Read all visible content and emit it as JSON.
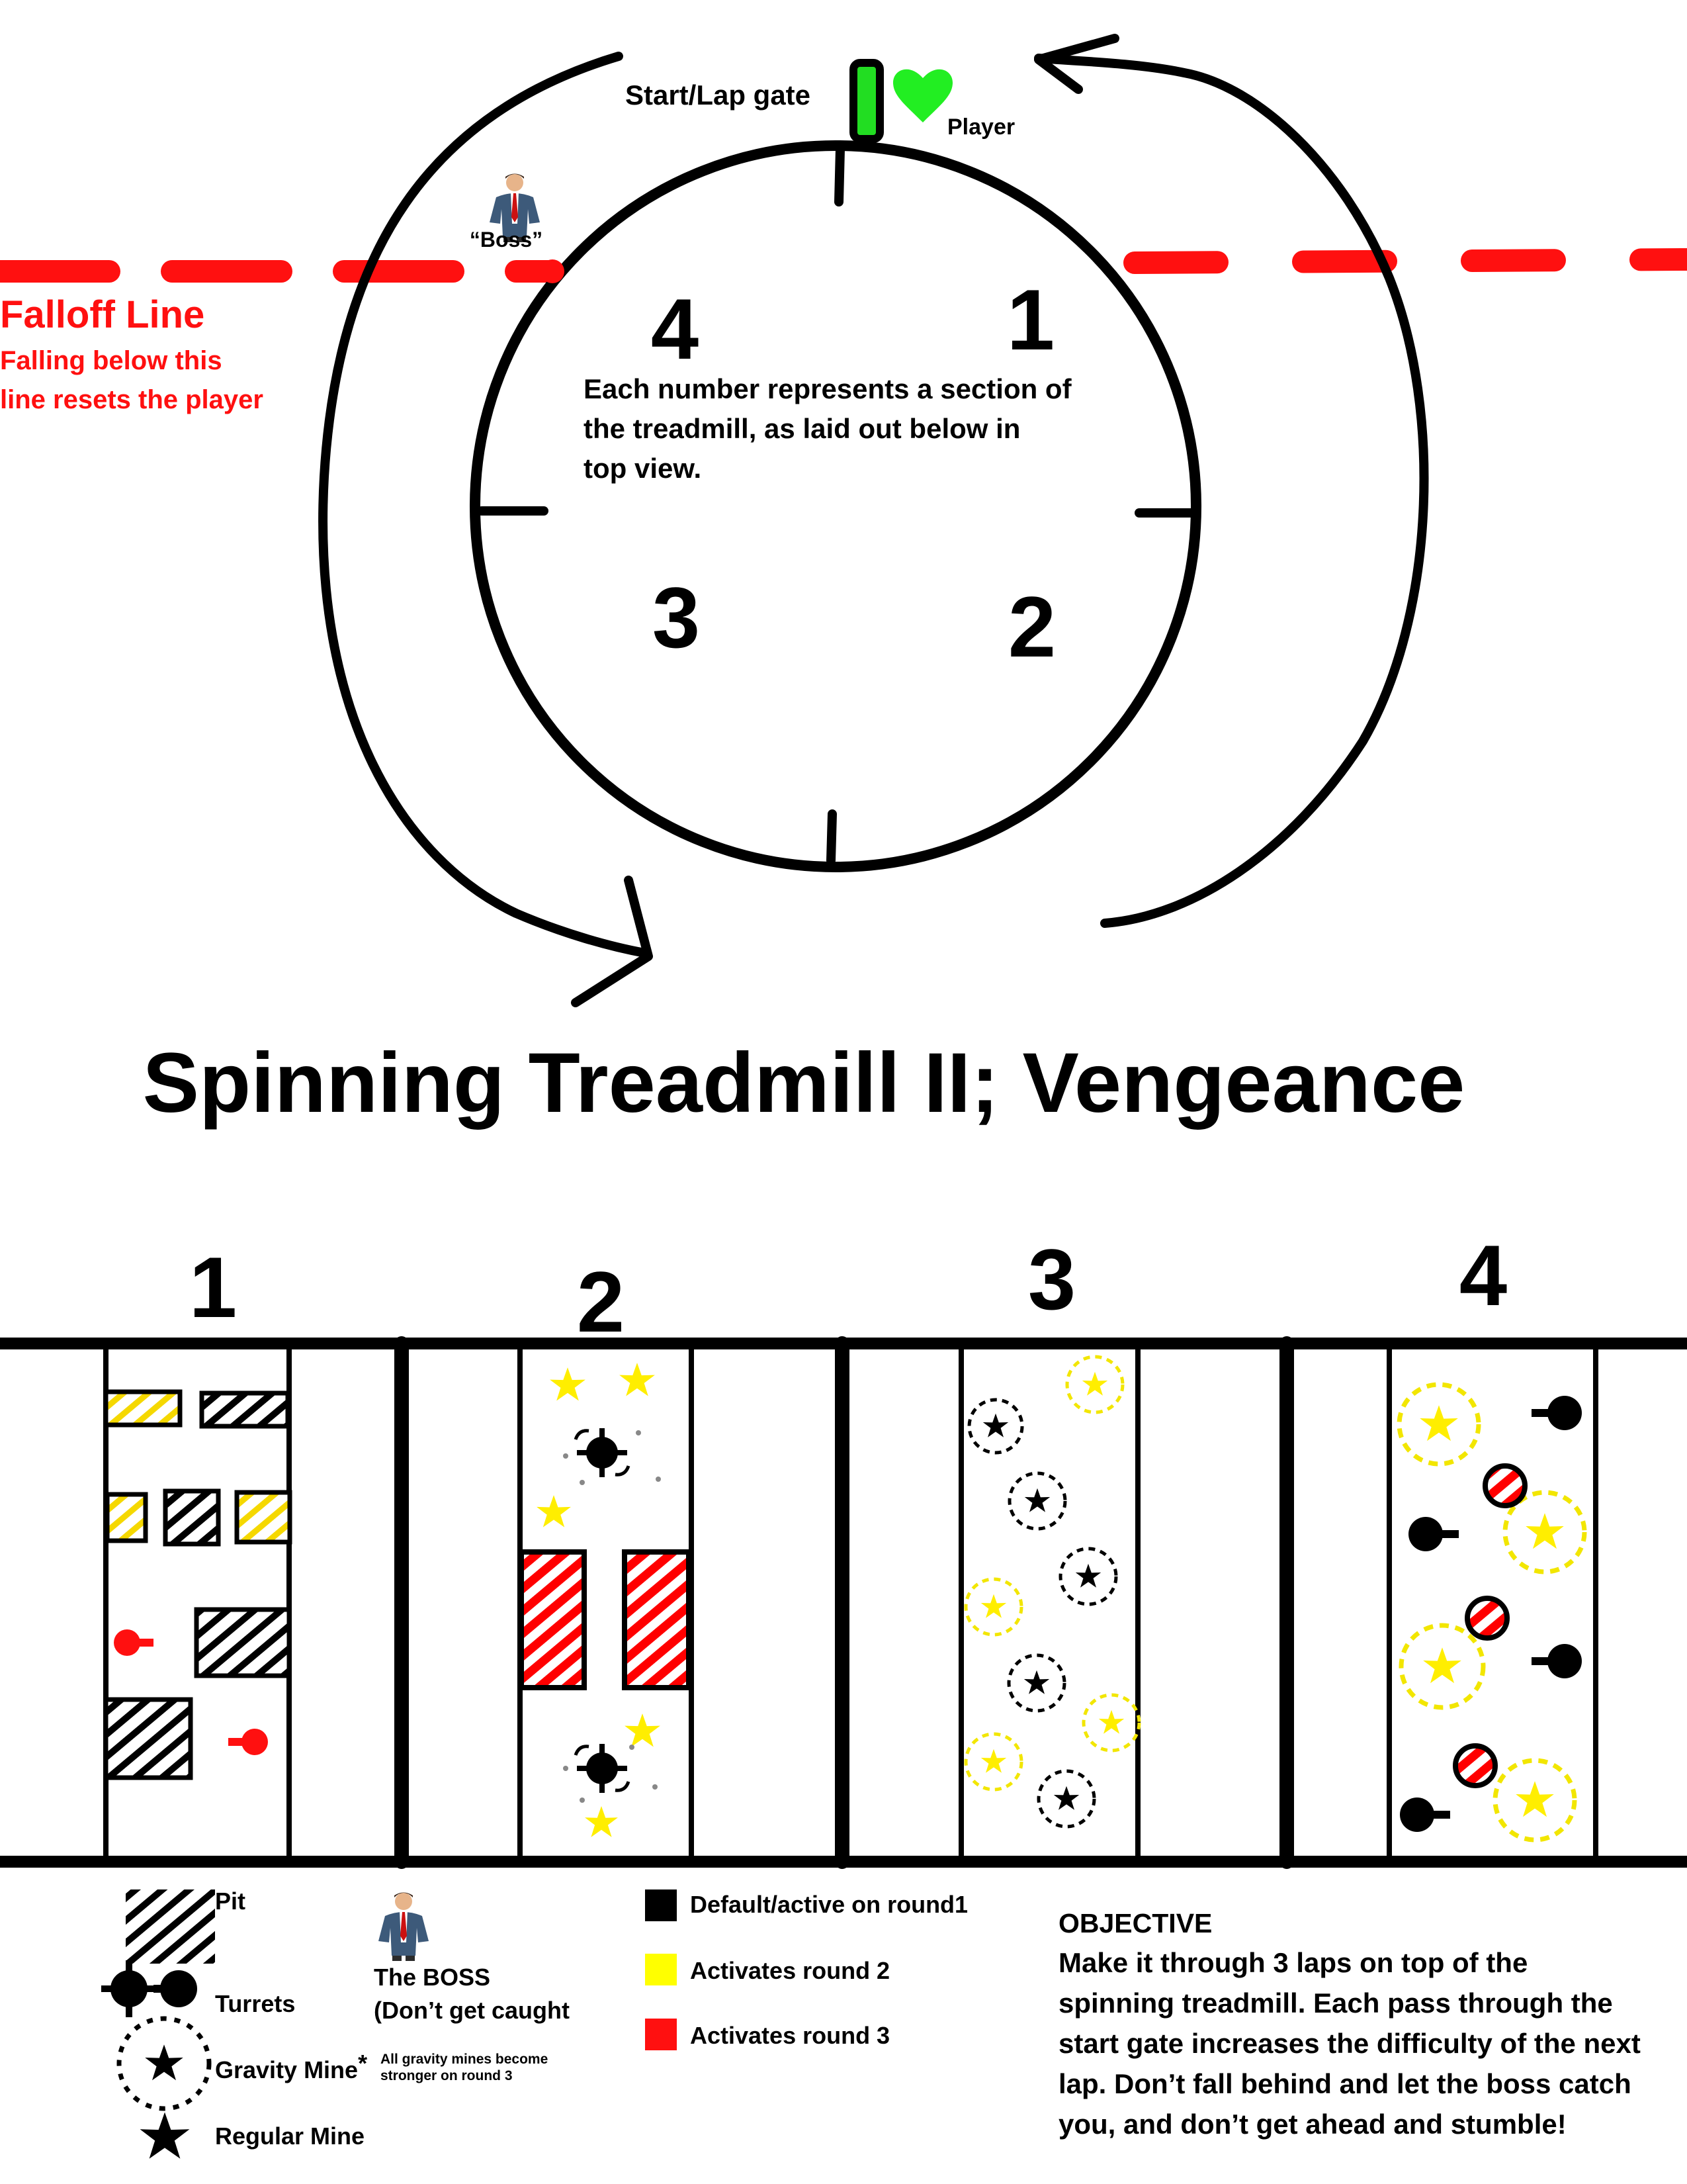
{
  "title": "Spinning Treadmill II; Vengeance",
  "top": {
    "gate_label": "Start/Lap gate",
    "player_label": "Player",
    "boss_label": "“Boss”",
    "falloff_title": "Falloff Line",
    "falloff_desc1": "Falling below this",
    "falloff_desc2": "line resets the player",
    "sections": [
      "4",
      "1",
      "3",
      "2"
    ],
    "center_note1": "Each number represents a section of",
    "center_note2": "the treadmill, as laid out below in",
    "center_note3": "top view."
  },
  "layout": {
    "section_labels": [
      "1",
      "2",
      "3",
      "4"
    ]
  },
  "legend": {
    "pit": "Pit",
    "turrets": "Turrets",
    "gravity_mine": "Gravity Mine",
    "gravity_star": "*",
    "gravity_note1": "All gravity mines become",
    "gravity_note2": "stronger on round 3",
    "regular_mine": "Regular Mine",
    "boss1": "The BOSS",
    "boss2": "(Don’t get caught",
    "default": "Default/active on round1",
    "round2": "Activates round 2",
    "round3": "Activates round 3"
  },
  "objective": {
    "heading": "OBJECTIVE",
    "lines": [
      "Make it through 3 laps on top of the",
      "spinning treadmill. Each pass through the",
      "start gate increases the difficulty of the next",
      "lap. Don’t fall behind and let the boss catch",
      "you, and don’t get ahead and stumble!"
    ]
  },
  "colors": {
    "black": "#000000",
    "red": "#ff0000",
    "yellow": "#ffff00",
    "green": "#22cc22",
    "dashed_yellow": "#f2e600",
    "pit_yellow": "#f5d800"
  },
  "icons": [
    "heart-icon",
    "boss-icon",
    "pit-icon",
    "turret-icon",
    "gravity-mine-icon",
    "mine-icon"
  ]
}
